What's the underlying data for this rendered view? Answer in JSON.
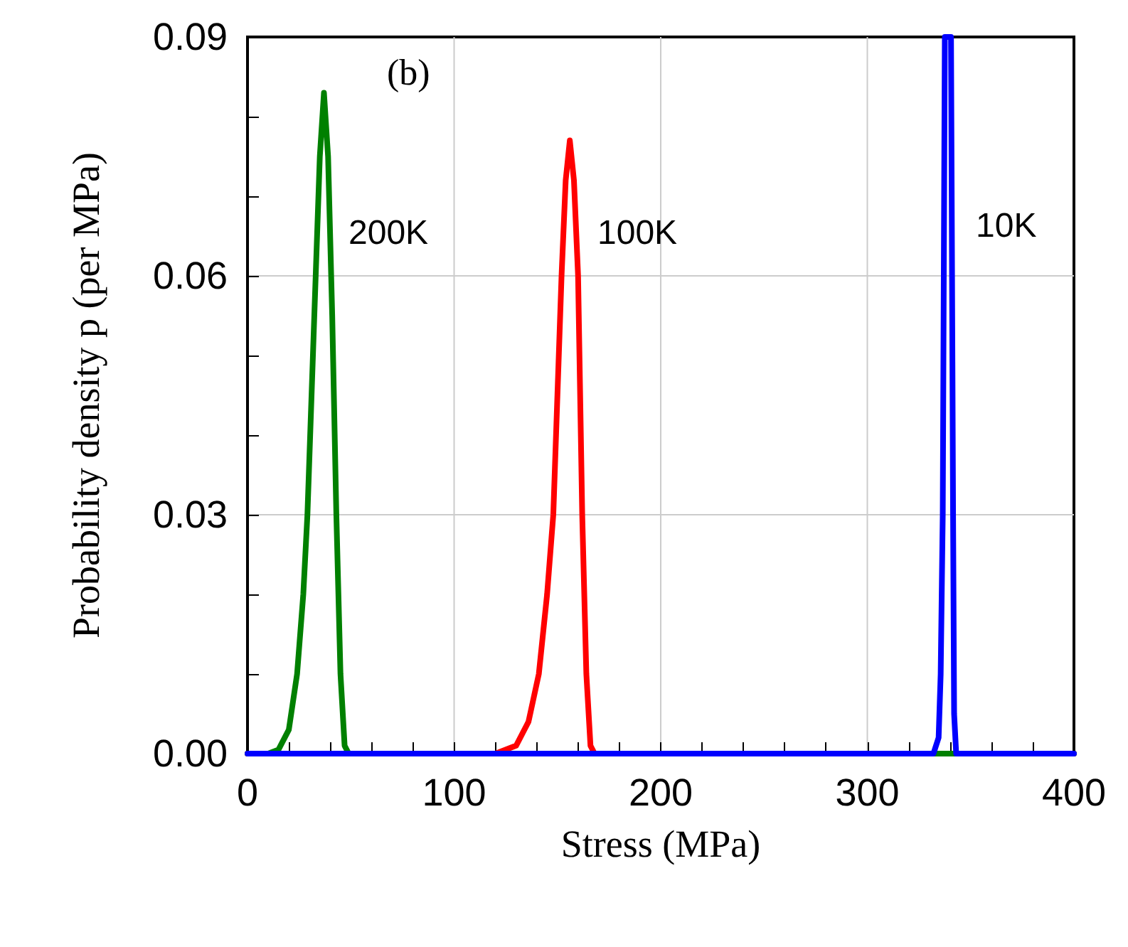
{
  "chart_data": {
    "type": "line",
    "xlabel": "Stress (MPa)",
    "ylabel": "Probability density p (per MPa)",
    "annotations": [
      "(b)",
      "200K",
      "100K",
      "10K"
    ],
    "series": [
      {
        "color": "#ff0000",
        "x": [
          0,
          120,
          130,
          136,
          141,
          145,
          148,
          150,
          152,
          154,
          156,
          158,
          160,
          162,
          164,
          166,
          168,
          400
        ],
        "values": [
          0,
          0,
          0.001,
          0.004,
          0.01,
          0.02,
          0.03,
          0.045,
          0.06,
          0.072,
          0.077,
          0.072,
          0.06,
          0.03,
          0.01,
          0.001,
          0,
          0
        ]
      },
      {
        "color": "#008000",
        "x": [
          0,
          10,
          15,
          20,
          24,
          27,
          29,
          31,
          33,
          35,
          37,
          39,
          41,
          43,
          45,
          47,
          49,
          400
        ],
        "values": [
          0,
          0,
          0.0005,
          0.003,
          0.01,
          0.02,
          0.03,
          0.045,
          0.06,
          0.075,
          0.083,
          0.075,
          0.055,
          0.03,
          0.01,
          0.001,
          0,
          0
        ]
      },
      {
        "color": "#0000ff",
        "x": [
          0,
          332,
          334.5,
          335.5,
          336.5,
          337,
          337.5,
          340.5,
          341,
          341.5,
          342,
          343,
          400
        ],
        "values": [
          0,
          0,
          0.002,
          0.01,
          0.03,
          0.06,
          0.09,
          0.09,
          0.06,
          0.03,
          0.005,
          0,
          0
        ]
      }
    ],
    "xlim": [
      0,
      400
    ],
    "xticks": [
      0,
      {
        "value": 20,
        "label": null
      },
      {
        "value": 40,
        "label": null
      },
      {
        "value": 60,
        "label": null
      },
      {
        "value": 80,
        "label": null
      },
      100,
      {
        "value": 120,
        "label": null
      },
      {
        "value": 140,
        "label": null
      },
      {
        "value": 160,
        "label": null
      },
      {
        "value": 180,
        "label": null
      },
      200,
      {
        "value": 220,
        "label": null
      },
      {
        "value": 240,
        "label": null
      },
      {
        "value": 260,
        "label": null
      },
      {
        "value": 280,
        "label": null
      },
      300,
      {
        "value": 320,
        "label": null
      },
      {
        "value": 340,
        "label": null
      },
      {
        "value": 360,
        "label": null
      },
      {
        "value": 380,
        "label": null
      },
      400
    ],
    "ylim": [
      0,
      0.09
    ],
    "yticks": [
      {
        "value": 0,
        "label": "0.00"
      },
      {
        "value": 0.01,
        "label": null
      },
      {
        "value": 0.02,
        "label": null
      },
      {
        "value": 0.03,
        "label": "0.03"
      },
      {
        "value": 0.04,
        "label": null
      },
      {
        "value": 0.05,
        "label": null
      },
      {
        "value": 0.06,
        "label": "0.06"
      },
      {
        "value": 0.07,
        "label": null
      },
      {
        "value": 0.08,
        "label": null
      },
      {
        "value": 0.09,
        "label": "0.09"
      }
    ],
    "grid": true,
    "marker": "none",
    "line_style": "solid"
  }
}
